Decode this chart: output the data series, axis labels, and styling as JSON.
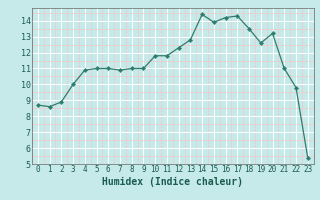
{
  "x": [
    0,
    1,
    2,
    3,
    4,
    5,
    6,
    7,
    8,
    9,
    10,
    11,
    12,
    13,
    14,
    15,
    16,
    17,
    18,
    19,
    20,
    21,
    22,
    23
  ],
  "y": [
    8.7,
    8.6,
    8.9,
    10.0,
    10.9,
    11.0,
    11.0,
    10.9,
    11.0,
    11.0,
    11.8,
    11.8,
    12.3,
    12.8,
    14.4,
    13.9,
    14.2,
    14.3,
    13.5,
    12.6,
    13.2,
    11.0,
    9.8,
    5.4
  ],
  "line_color": "#2e7d6d",
  "marker": "D",
  "markersize": 2.2,
  "bg_color": "#c6eaea",
  "grid_major_color": "#ffffff",
  "grid_minor_color": "#f0c8c8",
  "xlabel": "Humidex (Indice chaleur)",
  "xlim": [
    -0.5,
    23.5
  ],
  "ylim": [
    5,
    14.8
  ],
  "yticks": [
    5,
    6,
    7,
    8,
    9,
    10,
    11,
    12,
    13,
    14
  ],
  "xticks": [
    0,
    1,
    2,
    3,
    4,
    5,
    6,
    7,
    8,
    9,
    10,
    11,
    12,
    13,
    14,
    15,
    16,
    17,
    18,
    19,
    20,
    21,
    22,
    23
  ]
}
